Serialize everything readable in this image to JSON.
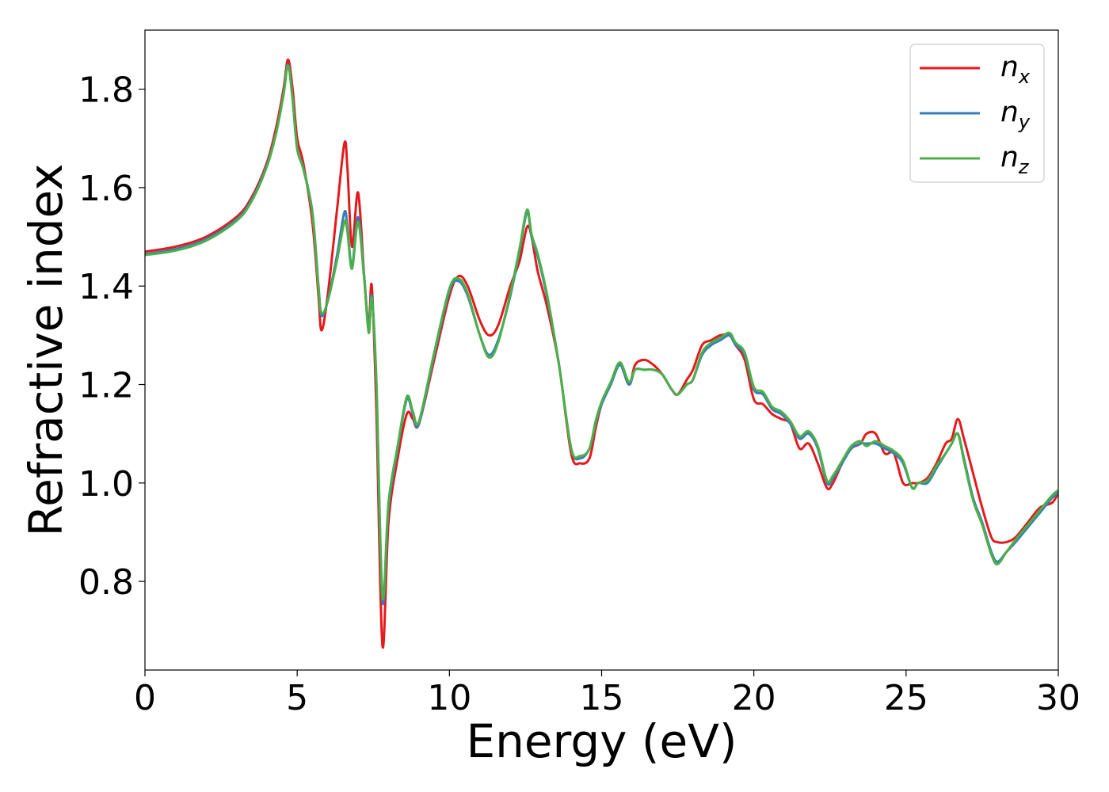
{
  "chart_data": {
    "type": "line",
    "title": "",
    "xlabel": "Energy (eV)",
    "ylabel": "Refractive index",
    "xlim": [
      0,
      30
    ],
    "ylim": [
      0.62,
      1.92
    ],
    "xticks": [
      0,
      5,
      10,
      15,
      20,
      25,
      30
    ],
    "xtick_labels": [
      "0",
      "5",
      "10",
      "15",
      "20",
      "25",
      "30"
    ],
    "yticks": [
      0.8,
      1.0,
      1.2,
      1.4,
      1.6,
      1.8
    ],
    "ytick_labels": [
      "0.8",
      "1.0",
      "1.2",
      "1.4",
      "1.6",
      "1.8"
    ],
    "grid": false,
    "legend_position": "top-right",
    "series": [
      {
        "name": "n_x",
        "label_main": "n",
        "label_sub": "x",
        "color": "#e41a1c",
        "x": [
          0,
          1,
          2,
          3,
          3.5,
          4,
          4.3,
          4.55,
          4.7,
          4.85,
          5.0,
          5.2,
          5.5,
          5.7,
          5.8,
          6.0,
          6.3,
          6.55,
          6.65,
          6.8,
          7.0,
          7.2,
          7.35,
          7.45,
          7.6,
          7.8,
          8.0,
          8.3,
          8.6,
          8.8,
          9.0,
          9.5,
          10.0,
          10.3,
          10.6,
          11.0,
          11.3,
          11.6,
          12.0,
          12.3,
          12.55,
          12.7,
          12.9,
          13.2,
          13.6,
          14.0,
          14.3,
          14.6,
          14.8,
          15.0,
          15.3,
          15.6,
          15.9,
          16.1,
          16.4,
          16.7,
          17.0,
          17.3,
          17.5,
          17.8,
          18.0,
          18.3,
          18.6,
          18.9,
          19.2,
          19.4,
          19.7,
          20.0,
          20.3,
          20.6,
          20.9,
          21.2,
          21.5,
          21.8,
          22.1,
          22.4,
          22.6,
          22.9,
          23.2,
          23.5,
          23.7,
          24.0,
          24.3,
          24.6,
          24.9,
          25.2,
          25.4,
          25.7,
          26.0,
          26.3,
          26.5,
          26.7,
          26.9,
          27.2,
          27.5,
          27.8,
          28.0,
          28.3,
          28.6,
          29.0,
          29.4,
          29.8,
          30.0
        ],
        "y": [
          1.47,
          1.48,
          1.5,
          1.54,
          1.58,
          1.65,
          1.72,
          1.8,
          1.86,
          1.8,
          1.7,
          1.65,
          1.53,
          1.38,
          1.31,
          1.38,
          1.55,
          1.69,
          1.64,
          1.48,
          1.59,
          1.42,
          1.32,
          1.4,
          1.15,
          0.67,
          0.92,
          1.05,
          1.14,
          1.13,
          1.12,
          1.25,
          1.38,
          1.42,
          1.4,
          1.33,
          1.3,
          1.32,
          1.4,
          1.45,
          1.52,
          1.5,
          1.43,
          1.36,
          1.24,
          1.06,
          1.04,
          1.05,
          1.11,
          1.16,
          1.2,
          1.24,
          1.2,
          1.24,
          1.25,
          1.24,
          1.22,
          1.19,
          1.18,
          1.21,
          1.23,
          1.28,
          1.29,
          1.3,
          1.3,
          1.28,
          1.25,
          1.17,
          1.16,
          1.14,
          1.13,
          1.12,
          1.07,
          1.08,
          1.04,
          0.99,
          1.0,
          1.04,
          1.07,
          1.08,
          1.1,
          1.1,
          1.06,
          1.06,
          1.0,
          1.0,
          1.0,
          1.01,
          1.04,
          1.08,
          1.09,
          1.13,
          1.09,
          1.02,
          0.95,
          0.89,
          0.88,
          0.88,
          0.89,
          0.92,
          0.95,
          0.96,
          0.98
        ]
      },
      {
        "name": "n_y",
        "label_main": "n",
        "label_sub": "y",
        "color": "#377eb8",
        "x": [
          0,
          1,
          2,
          3,
          3.5,
          4,
          4.3,
          4.55,
          4.7,
          4.85,
          5.0,
          5.2,
          5.5,
          5.7,
          5.8,
          6.0,
          6.3,
          6.55,
          6.65,
          6.8,
          7.0,
          7.2,
          7.35,
          7.45,
          7.6,
          7.8,
          8.0,
          8.3,
          8.6,
          8.8,
          9.0,
          9.5,
          10.0,
          10.3,
          10.6,
          11.0,
          11.3,
          11.6,
          12.0,
          12.3,
          12.55,
          12.7,
          12.9,
          13.2,
          13.6,
          14.0,
          14.3,
          14.6,
          14.8,
          15.0,
          15.3,
          15.6,
          15.9,
          16.1,
          16.4,
          16.7,
          17.0,
          17.3,
          17.5,
          17.8,
          18.0,
          18.3,
          18.6,
          18.9,
          19.2,
          19.4,
          19.7,
          20.0,
          20.3,
          20.6,
          20.9,
          21.2,
          21.5,
          21.8,
          22.1,
          22.4,
          22.6,
          22.9,
          23.2,
          23.5,
          23.7,
          24.0,
          24.3,
          24.6,
          24.9,
          25.2,
          25.4,
          25.7,
          26.0,
          26.3,
          26.5,
          26.7,
          26.9,
          27.2,
          27.5,
          27.8,
          28.0,
          28.3,
          28.6,
          29.0,
          29.4,
          29.8,
          30.0
        ],
        "y": [
          1.465,
          1.475,
          1.495,
          1.535,
          1.575,
          1.645,
          1.71,
          1.79,
          1.85,
          1.78,
          1.68,
          1.64,
          1.55,
          1.4,
          1.34,
          1.37,
          1.46,
          1.55,
          1.52,
          1.44,
          1.54,
          1.42,
          1.31,
          1.38,
          1.2,
          0.76,
          0.95,
          1.07,
          1.17,
          1.14,
          1.12,
          1.26,
          1.39,
          1.41,
          1.38,
          1.3,
          1.26,
          1.29,
          1.38,
          1.47,
          1.55,
          1.5,
          1.46,
          1.38,
          1.24,
          1.07,
          1.05,
          1.07,
          1.12,
          1.16,
          1.2,
          1.24,
          1.2,
          1.23,
          1.23,
          1.23,
          1.22,
          1.19,
          1.18,
          1.2,
          1.21,
          1.26,
          1.28,
          1.29,
          1.3,
          1.28,
          1.26,
          1.19,
          1.18,
          1.15,
          1.14,
          1.12,
          1.09,
          1.1,
          1.07,
          1.0,
          1.01,
          1.04,
          1.07,
          1.08,
          1.08,
          1.08,
          1.07,
          1.06,
          1.04,
          0.99,
          1.0,
          1.0,
          1.03,
          1.06,
          1.08,
          1.1,
          1.05,
          0.97,
          0.92,
          0.86,
          0.84,
          0.86,
          0.88,
          0.91,
          0.94,
          0.97,
          0.98
        ]
      },
      {
        "name": "n_z",
        "label_main": "n",
        "label_sub": "z",
        "color": "#4daf4a",
        "x": [
          0,
          1,
          2,
          3,
          3.5,
          4,
          4.3,
          4.55,
          4.7,
          4.85,
          5.0,
          5.2,
          5.5,
          5.7,
          5.8,
          6.0,
          6.3,
          6.55,
          6.65,
          6.8,
          7.0,
          7.2,
          7.35,
          7.45,
          7.6,
          7.8,
          8.0,
          8.3,
          8.6,
          8.8,
          9.0,
          9.5,
          10.0,
          10.3,
          10.6,
          11.0,
          11.3,
          11.6,
          12.0,
          12.3,
          12.55,
          12.7,
          12.9,
          13.2,
          13.6,
          14.0,
          14.3,
          14.6,
          14.8,
          15.0,
          15.3,
          15.6,
          15.9,
          16.1,
          16.4,
          16.7,
          17.0,
          17.3,
          17.5,
          17.8,
          18.0,
          18.3,
          18.6,
          18.9,
          19.2,
          19.4,
          19.7,
          20.0,
          20.3,
          20.6,
          20.9,
          21.2,
          21.5,
          21.8,
          22.1,
          22.4,
          22.6,
          22.9,
          23.2,
          23.5,
          23.7,
          24.0,
          24.3,
          24.6,
          24.9,
          25.2,
          25.4,
          25.7,
          26.0,
          26.3,
          26.5,
          26.7,
          26.9,
          27.2,
          27.5,
          27.8,
          28.0,
          28.3,
          28.6,
          29.0,
          29.4,
          29.8,
          30.0
        ],
        "y": [
          1.463,
          1.472,
          1.492,
          1.532,
          1.572,
          1.642,
          1.708,
          1.788,
          1.848,
          1.778,
          1.678,
          1.638,
          1.548,
          1.395,
          1.345,
          1.368,
          1.45,
          1.53,
          1.51,
          1.435,
          1.53,
          1.415,
          1.305,
          1.375,
          1.21,
          0.77,
          0.96,
          1.075,
          1.175,
          1.145,
          1.125,
          1.265,
          1.395,
          1.415,
          1.385,
          1.3,
          1.255,
          1.285,
          1.385,
          1.475,
          1.555,
          1.505,
          1.465,
          1.385,
          1.24,
          1.07,
          1.055,
          1.07,
          1.125,
          1.165,
          1.205,
          1.245,
          1.205,
          1.23,
          1.23,
          1.23,
          1.22,
          1.19,
          1.18,
          1.2,
          1.21,
          1.265,
          1.285,
          1.295,
          1.305,
          1.285,
          1.265,
          1.195,
          1.185,
          1.155,
          1.145,
          1.125,
          1.095,
          1.105,
          1.075,
          1.005,
          1.015,
          1.045,
          1.075,
          1.085,
          1.075,
          1.085,
          1.075,
          1.065,
          1.045,
          0.99,
          1.0,
          1.005,
          1.035,
          1.06,
          1.08,
          1.1,
          1.045,
          0.965,
          0.915,
          0.855,
          0.835,
          0.86,
          0.885,
          0.915,
          0.945,
          0.975,
          0.985
        ]
      }
    ]
  }
}
